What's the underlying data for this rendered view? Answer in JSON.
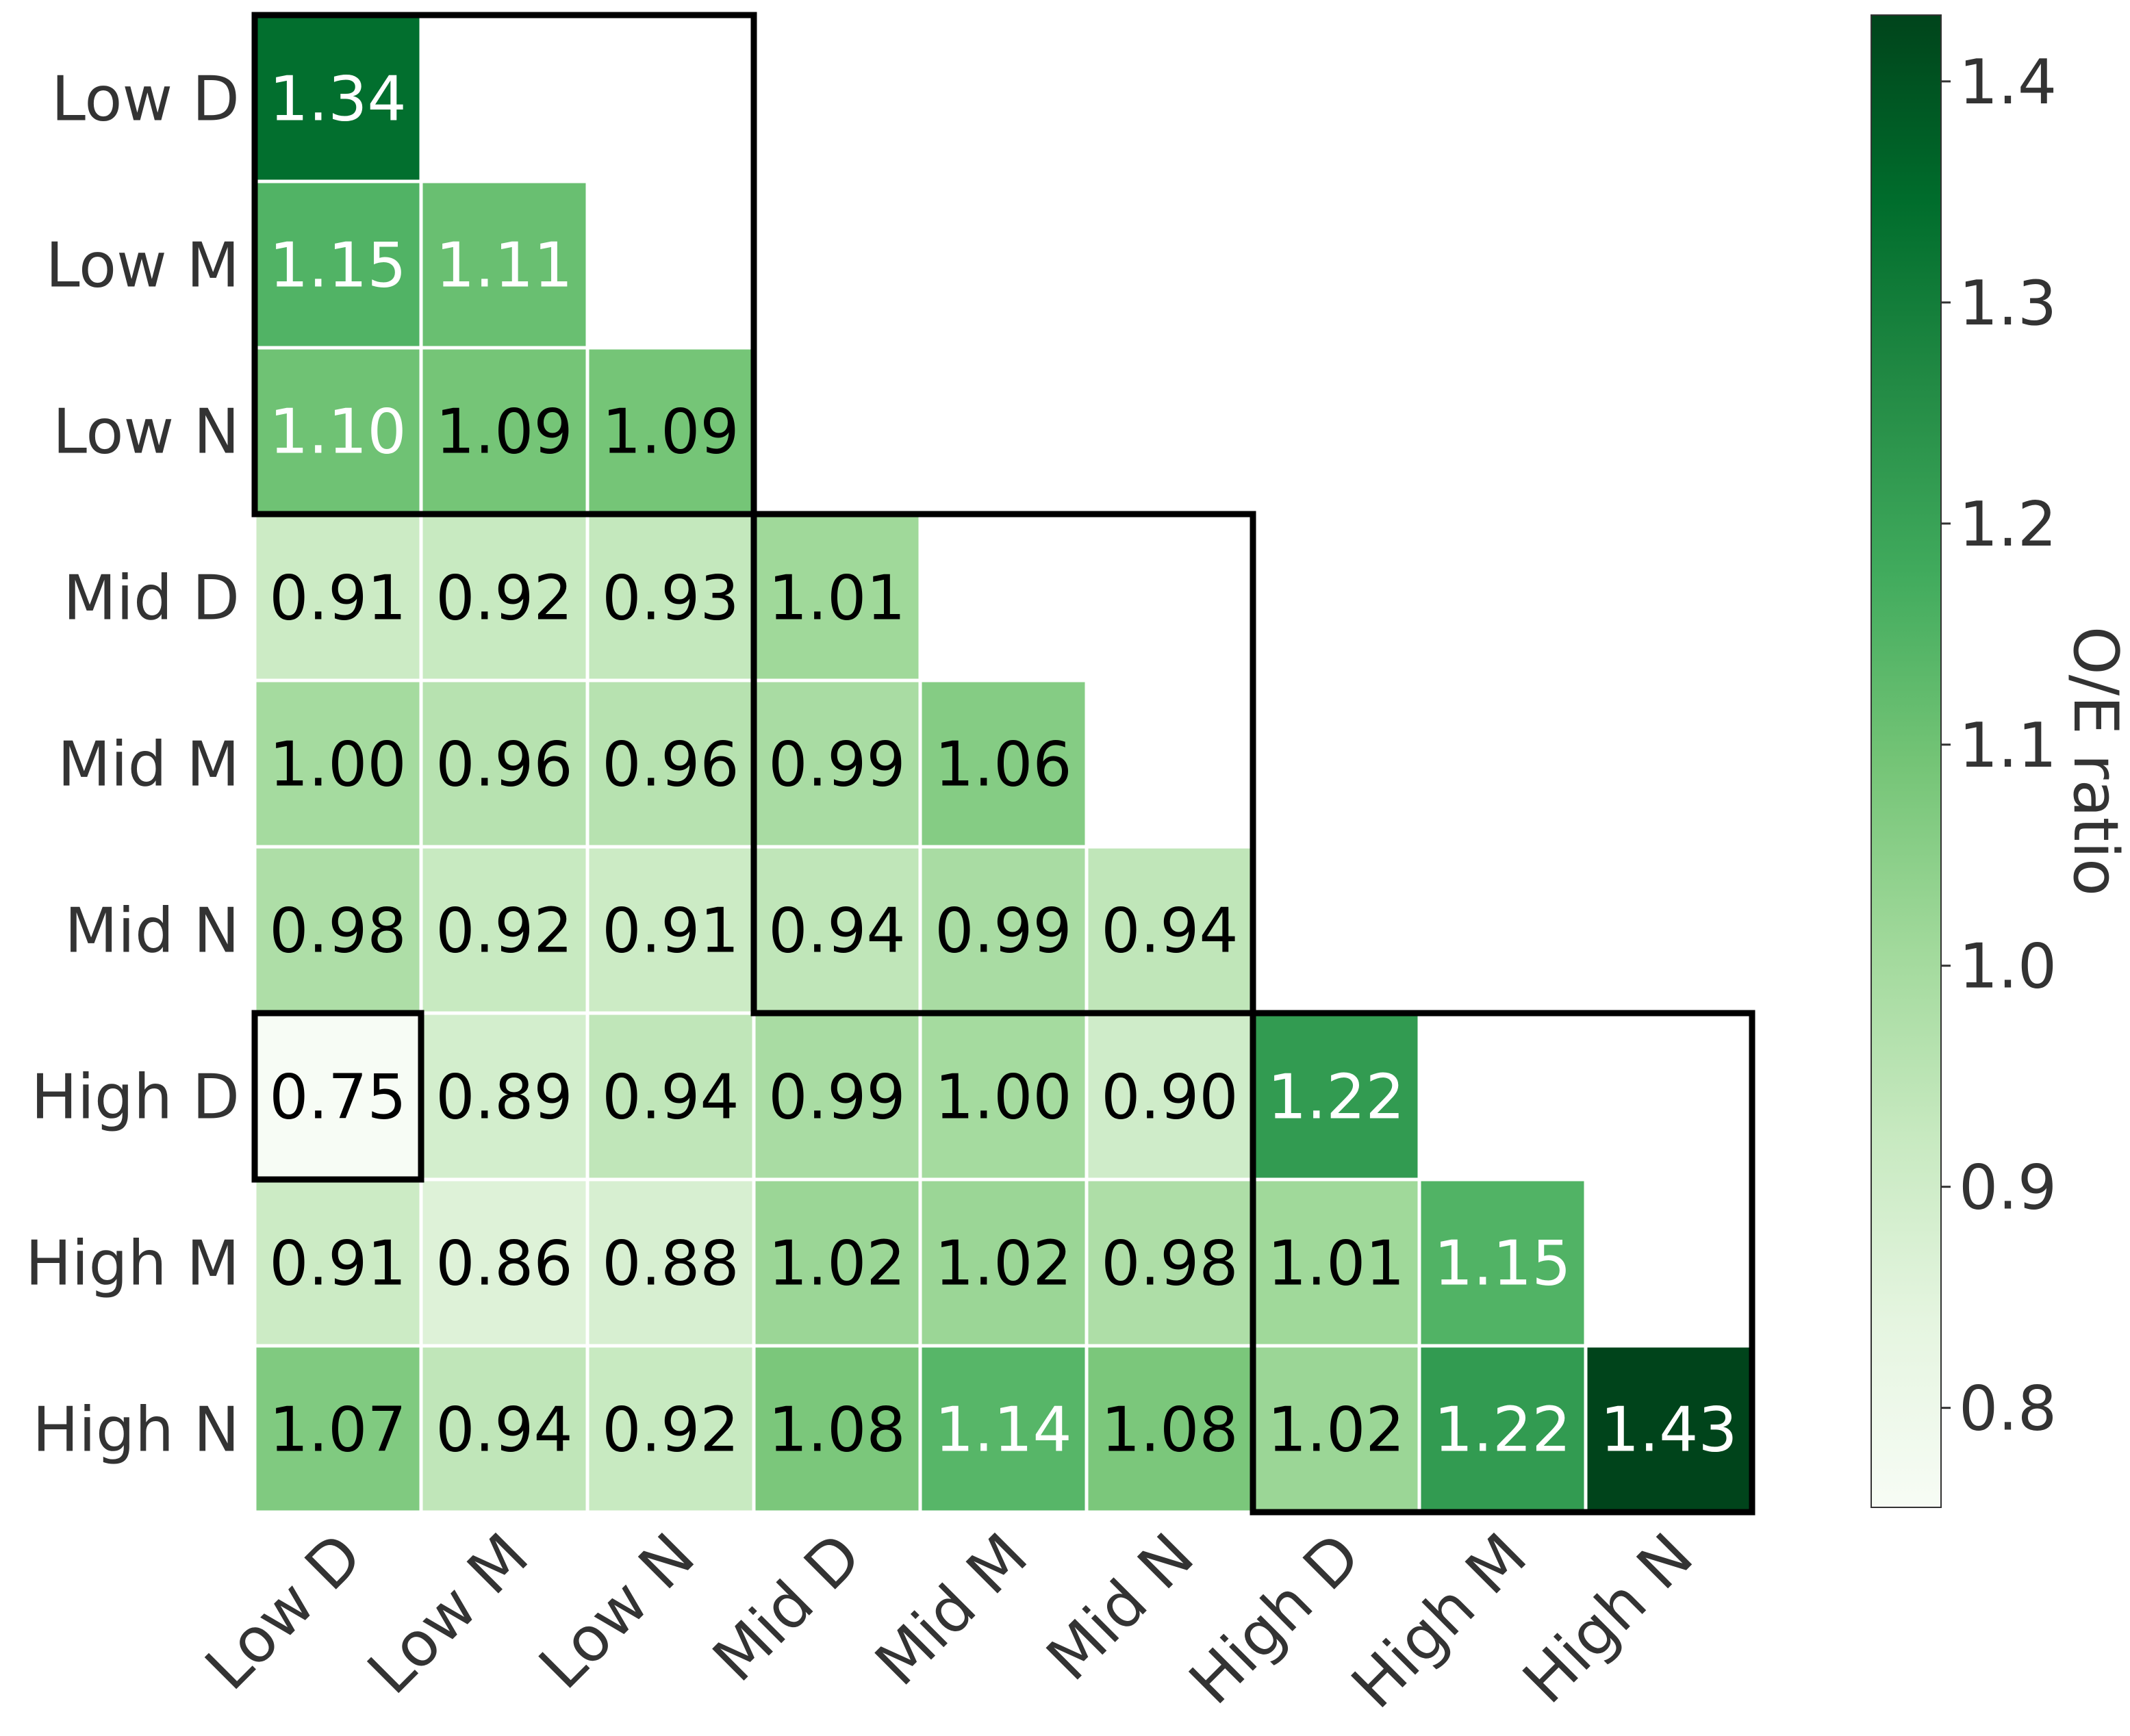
{
  "chart_data": {
    "type": "heatmap",
    "title": "",
    "xlabel": "",
    "ylabel": "",
    "categories": [
      "Low D",
      "Low M",
      "Low N",
      "Mid D",
      "Mid M",
      "Mid N",
      "High D",
      "High M",
      "High N"
    ],
    "values": [
      [
        1.34,
        null,
        null,
        null,
        null,
        null,
        null,
        null,
        null
      ],
      [
        1.15,
        1.11,
        null,
        null,
        null,
        null,
        null,
        null,
        null
      ],
      [
        1.1,
        1.09,
        1.09,
        null,
        null,
        null,
        null,
        null,
        null
      ],
      [
        0.91,
        0.92,
        0.93,
        1.01,
        null,
        null,
        null,
        null,
        null
      ],
      [
        1.0,
        0.96,
        0.96,
        0.99,
        1.06,
        null,
        null,
        null,
        null
      ],
      [
        0.98,
        0.92,
        0.91,
        0.94,
        0.99,
        0.94,
        null,
        null,
        null
      ],
      [
        0.75,
        0.89,
        0.94,
        0.99,
        1.0,
        0.9,
        1.22,
        null,
        null
      ],
      [
        0.91,
        0.86,
        0.88,
        1.02,
        1.02,
        0.98,
        1.01,
        1.15,
        null
      ],
      [
        1.07,
        0.94,
        0.92,
        1.08,
        1.14,
        1.08,
        1.02,
        1.22,
        1.43
      ]
    ],
    "mask": "lower-triangle",
    "colorbar": {
      "label": "O/E ratio",
      "min": 0.755,
      "max": 1.43,
      "ticks": [
        0.8,
        0.9,
        1.0,
        1.1,
        1.2,
        1.3,
        1.4
      ],
      "tick_labels": [
        "0.8",
        "0.9",
        "1.0",
        "1.1",
        "1.2",
        "1.3",
        "1.4"
      ],
      "colormap": "Greens",
      "colors": [
        "#f7fcf5",
        "#e5f5e0",
        "#c7e9c0",
        "#a1d99b",
        "#74c476",
        "#41ab5d",
        "#238b45",
        "#006d2c",
        "#00441b"
      ]
    },
    "highlight_groups": [
      {
        "rows": [
          "Low D",
          "Low M",
          "Low N"
        ],
        "cols": [
          "Low D",
          "Low M",
          "Low N"
        ]
      },
      {
        "rows": [
          "Mid D",
          "Mid M",
          "Mid N"
        ],
        "cols": [
          "Mid D",
          "Mid M",
          "Mid N"
        ]
      },
      {
        "rows": [
          "High D",
          "High M",
          "High N"
        ],
        "cols": [
          "High D",
          "High M",
          "High N"
        ]
      },
      {
        "rows": [
          "High D"
        ],
        "cols": [
          "Low D"
        ]
      }
    ],
    "text_color_threshold": 1.1,
    "value_format": "2 decimals",
    "grid": false,
    "legend": "right (colorbar)"
  }
}
